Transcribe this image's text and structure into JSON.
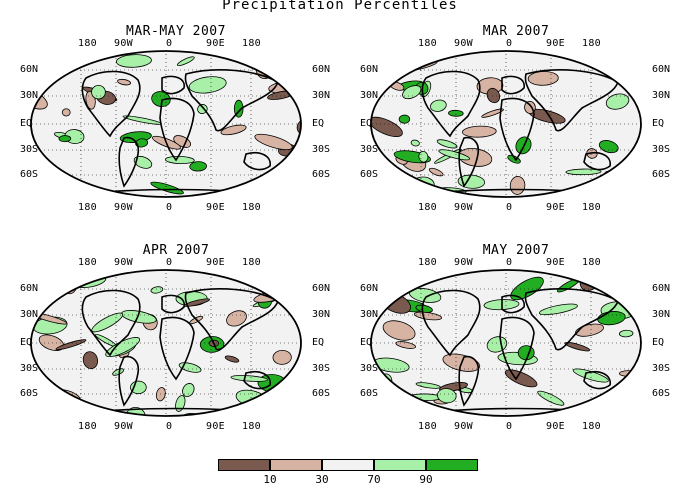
{
  "title": "Precipitation Percentiles",
  "colors": {
    "very_dry": "#7a5a4e",
    "dry": "#d7b3a4",
    "normal": "#f2f2f2",
    "wet": "#a8f0a8",
    "very_wet": "#22ad22"
  },
  "panels": [
    {
      "title": "MAR-MAY 2007"
    },
    {
      "title": "MAR 2007"
    },
    {
      "title": "APR 2007"
    },
    {
      "title": "MAY 2007"
    }
  ],
  "lon_labels": [
    "180",
    "90W",
    "0",
    "90E",
    "180"
  ],
  "lat_labels_left": [
    "60N",
    "30N",
    "EQ",
    "30S",
    "60S"
  ],
  "lat_labels_right": [
    "60N",
    "30N",
    "EQ",
    "30S",
    "60S"
  ],
  "legend": {
    "colors": [
      "#7a5a4e",
      "#d7b3a4",
      "#f2f2f2",
      "#a8f0a8",
      "#22ad22"
    ],
    "ticks": [
      "10",
      "30",
      "70",
      "90"
    ]
  }
}
